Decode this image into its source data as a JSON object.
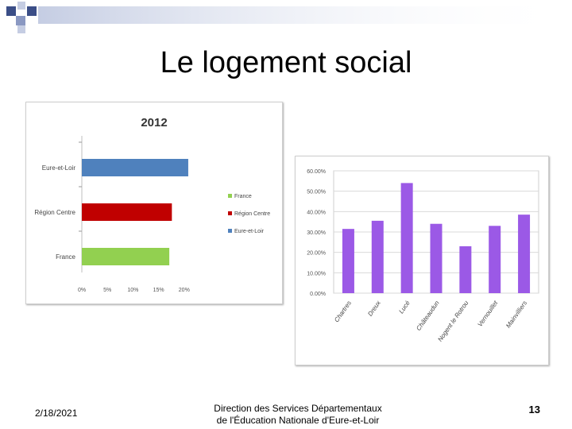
{
  "slide": {
    "title": "Le logement social",
    "footer_date": "2/18/2021",
    "footer_line1": "Direction des Services Départementaux",
    "footer_line2": "de l'Éducation Nationale d'Eure-et-Loir",
    "page_number": "13"
  },
  "chart_data": [
    {
      "type": "bar",
      "orientation": "horizontal",
      "title": "2012",
      "categories": [
        "Eure-et-Loir",
        "Région Centre",
        "France"
      ],
      "values": [
        20.8,
        17.6,
        17.1
      ],
      "bar_colors": [
        "#4F81BD",
        "#C00000",
        "#92D050"
      ],
      "xlim": [
        0,
        25
      ],
      "xticks": [
        "0%",
        "5%",
        "10%",
        "15%",
        "20%"
      ],
      "legend": {
        "placement": "right",
        "entries": [
          {
            "name": "France",
            "color": "#92D050"
          },
          {
            "name": "Région Centre",
            "color": "#C00000"
          },
          {
            "name": "Eure-et-Loir",
            "color": "#4F81BD"
          }
        ]
      }
    },
    {
      "type": "bar",
      "orientation": "vertical",
      "categories": [
        "Chartres",
        "Dreux",
        "Lucé",
        "Châteaudun",
        "Nogent le Rotrou",
        "Vernouillet",
        "Mainvilliers"
      ],
      "values": [
        31.5,
        35.5,
        54,
        34,
        23,
        33,
        38.5
      ],
      "color": "#9B59E6",
      "ylim": [
        0,
        60
      ],
      "yticks": [
        "0.00%",
        "10.00%",
        "20.00%",
        "30.00%",
        "40.00%",
        "50.00%",
        "60.00%"
      ],
      "grid": true
    }
  ],
  "colors": {
    "deco_dark": "#3B4E87",
    "deco_light": "#C5CDE3",
    "chart_grid": "#d9d9d9"
  }
}
